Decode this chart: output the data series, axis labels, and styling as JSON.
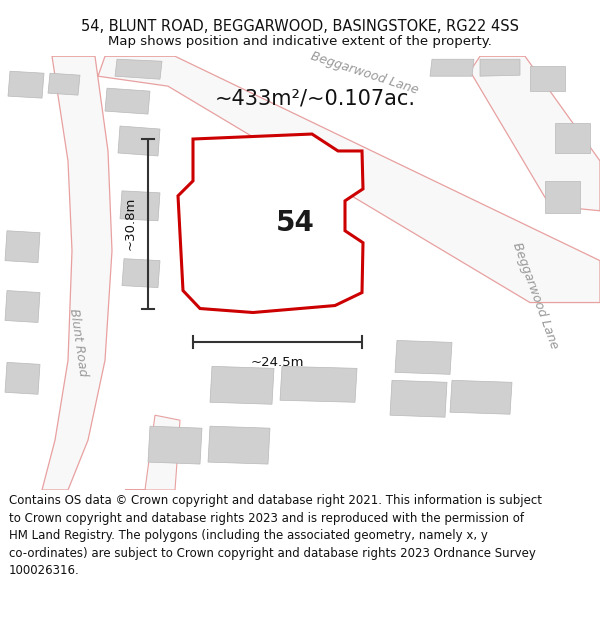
{
  "title_line1": "54, BLUNT ROAD, BEGGARWOOD, BASINGSTOKE, RG22 4SS",
  "title_line2": "Map shows position and indicative extent of the property.",
  "area_label": "~433m²/~0.107ac.",
  "number_label": "54",
  "dim_horizontal": "~24.5m",
  "dim_vertical": "~30.8m",
  "road_label_top": "Beggarwood Lane",
  "road_label_right": "Beggarwood Lane",
  "road_label_left": "Blunt Road",
  "footer_line1": "Contains OS data © Crown copyright and database right 2021. This information is subject",
  "footer_line2": "to Crown copyright and database rights 2023 and is reproduced with the permission of",
  "footer_line3": "HM Land Registry. The polygons (including the associated geometry, namely x, y",
  "footer_line4": "co-ordinates) are subject to Crown copyright and database rights 2023 Ordnance Survey",
  "footer_line5": "100026316.",
  "bg_color": "#ebebeb",
  "parcel_edge_color": "#cc0000",
  "road_stroke": "#e8a0a0",
  "road_fill": "#f8f8f8",
  "building_fill": "#d0d0d0",
  "building_edge": "#b8b8b8",
  "dim_line_color": "#333333",
  "title_fontsize": 10.5,
  "subtitle_fontsize": 9.5,
  "area_label_fontsize": 15,
  "number_fontsize": 20,
  "road_label_fontsize": 9,
  "footer_fontsize": 8.5
}
